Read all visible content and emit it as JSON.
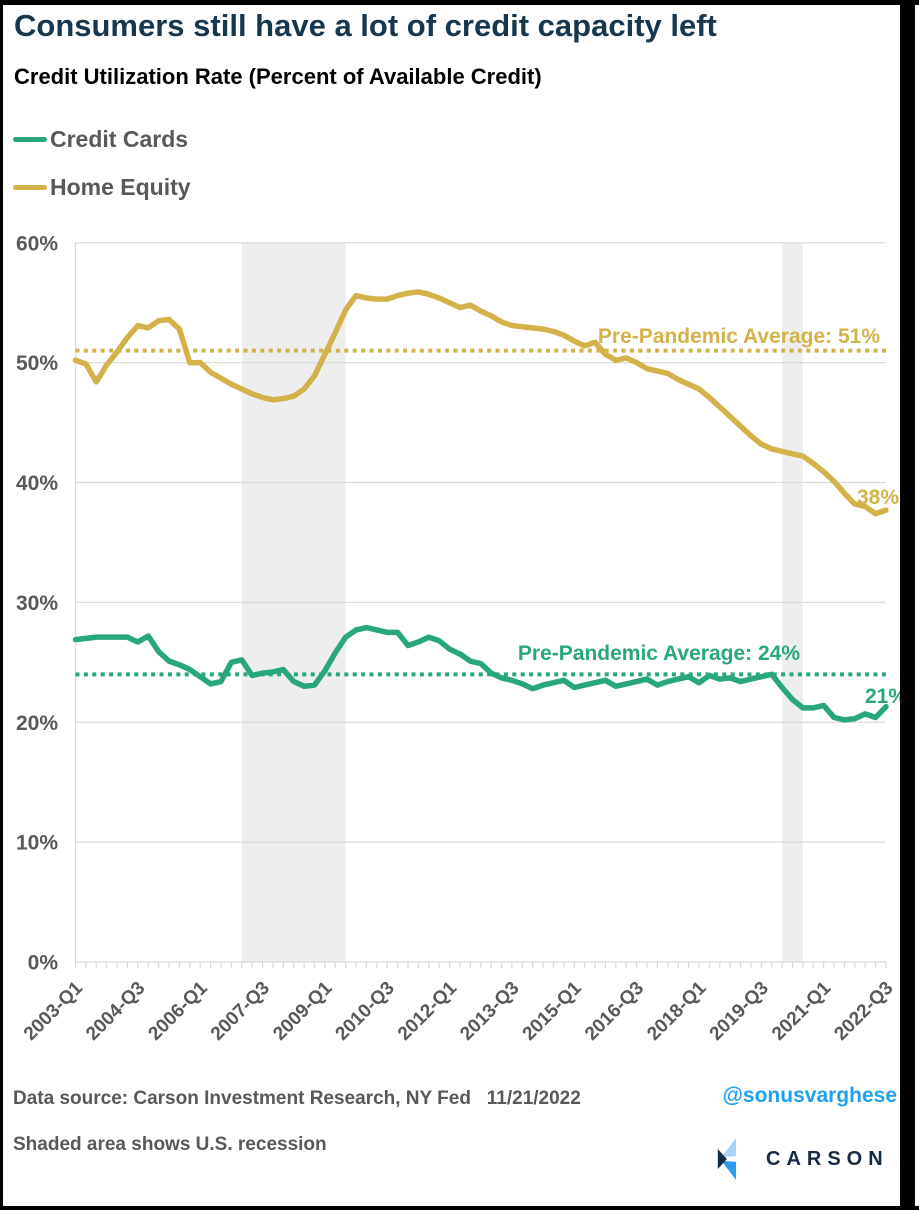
{
  "header": {
    "title": "Consumers still have a lot of credit capacity left",
    "subtitle": "Credit Utilization Rate (Percent of Available Credit)"
  },
  "legend": [
    {
      "label": "Credit Cards",
      "color": "#29a77c"
    },
    {
      "label": "Home Equity",
      "color": "#d4b24a"
    }
  ],
  "chart_data": {
    "type": "line",
    "title": "Credit Utilization Rate (Percent of Available Credit)",
    "ylim": [
      0,
      60
    ],
    "grid": "horizontal",
    "legend_position": "top-left",
    "y_tick_labels": [
      "0%",
      "10%",
      "20%",
      "30%",
      "40%",
      "50%",
      "60%"
    ],
    "x_tick_labels_shown": [
      "2003-Q1",
      "2004-Q3",
      "2006-Q1",
      "2007-Q3",
      "2009-Q1",
      "2010-Q3",
      "2012-Q1",
      "2013-Q3",
      "2015-Q1",
      "2016-Q3",
      "2018-Q1",
      "2019-Q3",
      "2021-Q1",
      "2022-Q3"
    ],
    "x": [
      "2003-Q1",
      "2003-Q2",
      "2003-Q3",
      "2003-Q4",
      "2004-Q1",
      "2004-Q2",
      "2004-Q3",
      "2004-Q4",
      "2005-Q1",
      "2005-Q2",
      "2005-Q3",
      "2005-Q4",
      "2006-Q1",
      "2006-Q2",
      "2006-Q3",
      "2006-Q4",
      "2007-Q1",
      "2007-Q2",
      "2007-Q3",
      "2007-Q4",
      "2008-Q1",
      "2008-Q2",
      "2008-Q3",
      "2008-Q4",
      "2009-Q1",
      "2009-Q2",
      "2009-Q3",
      "2009-Q4",
      "2010-Q1",
      "2010-Q2",
      "2010-Q3",
      "2010-Q4",
      "2011-Q1",
      "2011-Q2",
      "2011-Q3",
      "2011-Q4",
      "2012-Q1",
      "2012-Q2",
      "2012-Q3",
      "2012-Q4",
      "2013-Q1",
      "2013-Q2",
      "2013-Q3",
      "2013-Q4",
      "2014-Q1",
      "2014-Q2",
      "2014-Q3",
      "2014-Q4",
      "2015-Q1",
      "2015-Q2",
      "2015-Q3",
      "2015-Q4",
      "2016-Q1",
      "2016-Q2",
      "2016-Q3",
      "2016-Q4",
      "2017-Q1",
      "2017-Q2",
      "2017-Q3",
      "2017-Q4",
      "2018-Q1",
      "2018-Q2",
      "2018-Q3",
      "2018-Q4",
      "2019-Q1",
      "2019-Q2",
      "2019-Q3",
      "2019-Q4",
      "2020-Q1",
      "2020-Q2",
      "2020-Q3",
      "2020-Q4",
      "2021-Q1",
      "2021-Q2",
      "2021-Q3",
      "2021-Q4",
      "2022-Q1",
      "2022-Q2",
      "2022-Q3"
    ],
    "series": [
      {
        "name": "Credit Cards",
        "color": "#29a77c",
        "end_label": "21%",
        "average_line": {
          "value": 24,
          "label": "Pre-Pandemic Average: 24%"
        },
        "values": [
          26.9,
          27.0,
          27.1,
          27.1,
          27.1,
          27.1,
          26.7,
          27.2,
          25.9,
          25.1,
          24.8,
          24.4,
          23.8,
          23.2,
          23.4,
          25.0,
          25.2,
          23.9,
          24.1,
          24.2,
          24.4,
          23.4,
          23.0,
          23.1,
          24.3,
          25.8,
          27.1,
          27.7,
          27.9,
          27.7,
          27.5,
          27.5,
          26.4,
          26.7,
          27.1,
          26.8,
          26.1,
          25.7,
          25.1,
          24.9,
          24.1,
          23.7,
          23.5,
          23.2,
          22.8,
          23.1,
          23.3,
          23.5,
          22.9,
          23.1,
          23.3,
          23.5,
          23.0,
          23.2,
          23.4,
          23.6,
          23.1,
          23.4,
          23.6,
          23.8,
          23.3,
          23.9,
          23.6,
          23.7,
          23.4,
          23.6,
          23.8,
          24.0,
          22.9,
          21.9,
          21.2,
          21.2,
          21.4,
          20.4,
          20.2,
          20.3,
          20.7,
          20.4,
          21.3
        ]
      },
      {
        "name": "Home Equity",
        "color": "#d4b24a",
        "end_label": "38%",
        "average_line": {
          "value": 51,
          "label": "Pre-Pandemic Average: 51%"
        },
        "values": [
          50.2,
          49.9,
          48.4,
          49.8,
          50.9,
          52.1,
          53.1,
          52.9,
          53.5,
          53.6,
          52.8,
          50.0,
          50.0,
          49.2,
          48.7,
          48.2,
          47.8,
          47.4,
          47.1,
          46.9,
          47.0,
          47.2,
          47.8,
          48.9,
          50.7,
          52.5,
          54.4,
          55.6,
          55.4,
          55.3,
          55.3,
          55.6,
          55.8,
          55.9,
          55.7,
          55.4,
          55.0,
          54.6,
          54.8,
          54.3,
          53.9,
          53.4,
          53.1,
          53.0,
          52.9,
          52.8,
          52.6,
          52.3,
          51.8,
          51.4,
          51.7,
          50.7,
          50.2,
          50.4,
          50.0,
          49.5,
          49.3,
          49.1,
          48.6,
          48.2,
          47.8,
          47.1,
          46.3,
          45.5,
          44.7,
          43.9,
          43.2,
          42.8,
          42.6,
          42.4,
          42.2,
          41.6,
          40.9,
          40.1,
          39.1,
          38.2,
          38.0,
          37.4,
          37.7
        ]
      }
    ],
    "recessions": [
      {
        "start": "2007-Q1",
        "end": "2009-Q2"
      },
      {
        "start": "2020-Q1",
        "end": "2020-Q2"
      }
    ]
  },
  "footer": {
    "source_line": "Data source: Carson Investment Research, NY Fed   11/21/2022",
    "handle": "@sonusvarghese",
    "note": "Shaded area shows U.S. recession",
    "logo_text": "CARSON"
  },
  "colors": {
    "credit_cards": "#29a77c",
    "home_equity": "#d4b24a",
    "title": "#17374e",
    "axis_text": "#595959",
    "gridline": "#d9d9d9",
    "recession_band": "#eeeeee",
    "handle": "#1da1f2",
    "logo_navy": "#172a45",
    "logo_light_blue": "#a9d3f4",
    "logo_mid_blue": "#2b9ced",
    "frame": "#000000"
  }
}
